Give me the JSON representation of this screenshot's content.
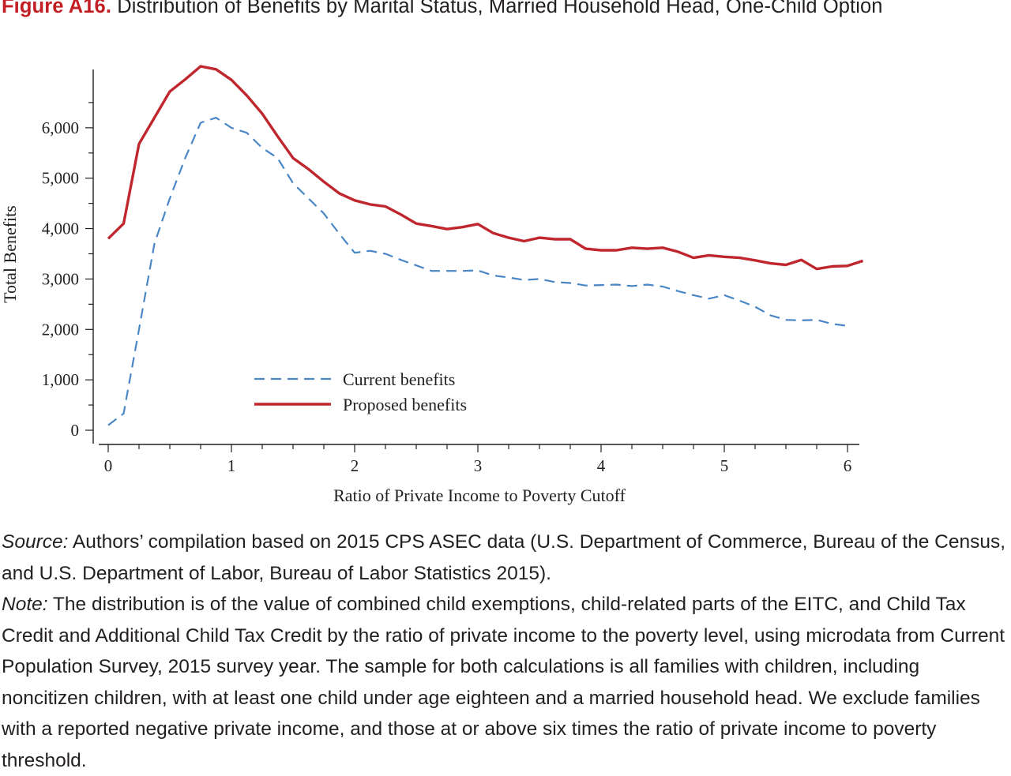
{
  "figure": {
    "label": "Figure A16.",
    "title": "Distribution of Benefits by Marital Status, Married Household Head, One-Child Option"
  },
  "chart_data": {
    "type": "line",
    "title": "Distribution of Benefits by Marital Status, Married Household Head, One-Child Option",
    "xlabel": "Ratio of Private Income to Poverty Cutoff",
    "ylabel": "Total Benefits",
    "xlim": [
      0,
      6
    ],
    "ylim": [
      0,
      7000
    ],
    "x_ticks": [
      0,
      1,
      2,
      3,
      4,
      5,
      6
    ],
    "x_tick_labels": [
      "0",
      "1",
      "2",
      "3",
      "4",
      "5",
      "6"
    ],
    "y_ticks": [
      0,
      1000,
      2000,
      3000,
      4000,
      5000,
      6000
    ],
    "y_tick_labels": [
      "0",
      "1,000",
      "2,000",
      "3,000",
      "4,000",
      "5,000",
      "6,000"
    ],
    "grid": false,
    "legend_position": "lower-center",
    "series": [
      {
        "name": "Current benefits",
        "color": "#4a86c5",
        "dash": "dashed",
        "points": [
          [
            0,
            100
          ],
          [
            0.125,
            330
          ],
          [
            0.25,
            2000
          ],
          [
            0.375,
            3700
          ],
          [
            0.5,
            4600
          ],
          [
            0.625,
            5400
          ],
          [
            0.75,
            6100
          ],
          [
            0.875,
            6200
          ],
          [
            1.0,
            6000
          ],
          [
            1.125,
            5900
          ],
          [
            1.25,
            5600
          ],
          [
            1.375,
            5400
          ],
          [
            1.5,
            4900
          ],
          [
            1.625,
            4600
          ],
          [
            1.75,
            4300
          ],
          [
            1.875,
            3900
          ],
          [
            2.0,
            3520
          ],
          [
            2.125,
            3560
          ],
          [
            2.25,
            3500
          ],
          [
            2.375,
            3380
          ],
          [
            2.5,
            3270
          ],
          [
            2.625,
            3160
          ],
          [
            2.75,
            3160
          ],
          [
            2.875,
            3160
          ],
          [
            3.0,
            3170
          ],
          [
            3.125,
            3070
          ],
          [
            3.25,
            3030
          ],
          [
            3.375,
            2980
          ],
          [
            3.5,
            3000
          ],
          [
            3.625,
            2940
          ],
          [
            3.75,
            2920
          ],
          [
            3.875,
            2870
          ],
          [
            4.0,
            2880
          ],
          [
            4.125,
            2890
          ],
          [
            4.25,
            2860
          ],
          [
            4.375,
            2890
          ],
          [
            4.5,
            2850
          ],
          [
            4.625,
            2760
          ],
          [
            4.75,
            2680
          ],
          [
            4.875,
            2610
          ],
          [
            5.0,
            2680
          ],
          [
            5.125,
            2570
          ],
          [
            5.25,
            2450
          ],
          [
            5.375,
            2280
          ],
          [
            5.5,
            2190
          ],
          [
            5.625,
            2180
          ],
          [
            5.75,
            2190
          ],
          [
            5.875,
            2110
          ],
          [
            6.0,
            2070
          ]
        ]
      },
      {
        "name": "Proposed benefits",
        "color": "#c0262d",
        "dash": "solid",
        "points": [
          [
            0,
            3800
          ],
          [
            0.125,
            4100
          ],
          [
            0.25,
            5680
          ],
          [
            0.375,
            6200
          ],
          [
            0.5,
            6720
          ],
          [
            0.625,
            6960
          ],
          [
            0.75,
            7220
          ],
          [
            0.875,
            7160
          ],
          [
            1.0,
            6950
          ],
          [
            1.125,
            6640
          ],
          [
            1.25,
            6280
          ],
          [
            1.375,
            5830
          ],
          [
            1.5,
            5400
          ],
          [
            1.625,
            5180
          ],
          [
            1.75,
            4930
          ],
          [
            1.875,
            4700
          ],
          [
            2.0,
            4560
          ],
          [
            2.125,
            4480
          ],
          [
            2.25,
            4440
          ],
          [
            2.375,
            4280
          ],
          [
            2.5,
            4100
          ],
          [
            2.625,
            4050
          ],
          [
            2.75,
            3990
          ],
          [
            2.875,
            4030
          ],
          [
            3.0,
            4090
          ],
          [
            3.125,
            3910
          ],
          [
            3.25,
            3820
          ],
          [
            3.375,
            3750
          ],
          [
            3.5,
            3820
          ],
          [
            3.625,
            3790
          ],
          [
            3.75,
            3790
          ],
          [
            3.875,
            3600
          ],
          [
            4.0,
            3570
          ],
          [
            4.125,
            3570
          ],
          [
            4.25,
            3620
          ],
          [
            4.375,
            3600
          ],
          [
            4.5,
            3620
          ],
          [
            4.625,
            3540
          ],
          [
            4.75,
            3420
          ],
          [
            4.875,
            3470
          ],
          [
            5.0,
            3440
          ],
          [
            5.125,
            3420
          ],
          [
            5.25,
            3370
          ],
          [
            5.375,
            3310
          ],
          [
            5.5,
            3280
          ],
          [
            5.625,
            3380
          ],
          [
            5.75,
            3200
          ],
          [
            5.875,
            3250
          ],
          [
            6.0,
            3260
          ],
          [
            6.125,
            3360
          ]
        ]
      }
    ]
  },
  "notes": {
    "source_label": "Source:",
    "source_text": " Authors’ compilation based on 2015 CPS ASEC data (U.S. Department of Commerce, Bureau of the Census, and U.S. Department of Labor, Bureau of Labor Statistics 2015).",
    "note_label": "Note:",
    "note_text": " The distribution is of the value of combined child exemptions, child-related parts of the EITC, and Child Tax Credit and Additional Child Tax Credit by the ratio of private income to the poverty level, using microdata from Current Population Survey, 2015 survey year. The sample for both calculations is all families with children, including noncitizen children, with at least one child under age eighteen and a married household head. We exclude families with a reported negative private income, and those at or above six times the ratio of private income to poverty threshold."
  }
}
